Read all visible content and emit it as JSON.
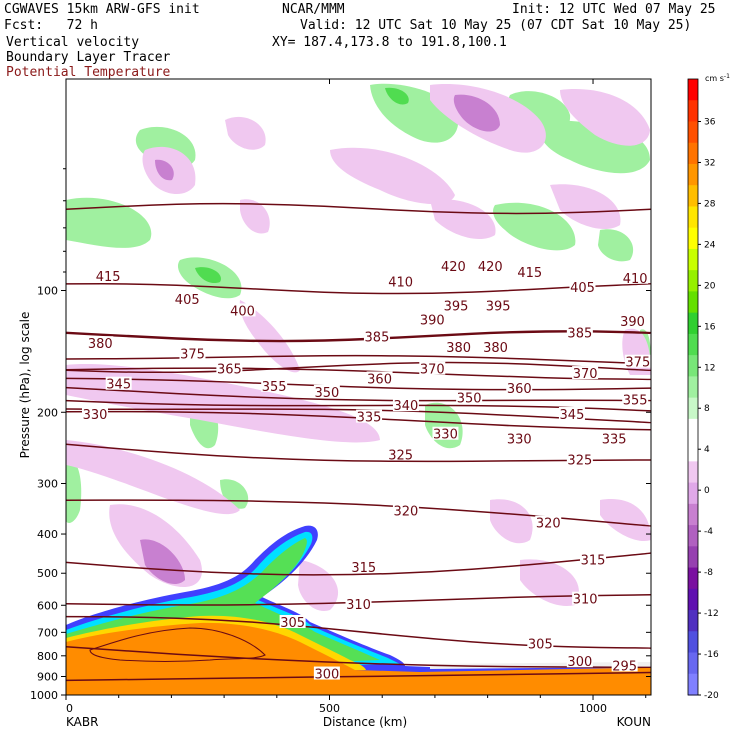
{
  "header": {
    "model": "CGWAVES 15km ARW-GFS init",
    "org": "NCAR/MMM",
    "init": "Init: 12 UTC Wed 07 May 25",
    "fcst": "Fcst:   72 h",
    "valid": "Valid: 12 UTC Sat 10 May 25 (07 CDT Sat 10 May 25)",
    "field1": "Vertical velocity",
    "field2": "Boundary Layer Tracer",
    "field3": "Potential Temperature",
    "xy": "XY= 187.4,173.8 to 191.8,100.1"
  },
  "colors": {
    "theta": "#6b0a14",
    "field3_text": "#8b1a1a",
    "tracer_orange": "#ff8c00",
    "tracer_yellow": "#ffd700",
    "tracer_green": "#55e055",
    "tracer_cyan": "#00e0ff",
    "tracer_blue": "#4040ff"
  },
  "chart_data": {
    "type": "cross-section",
    "ylabel": "Pressure (hPa), log scale",
    "xlabel": "Distance (km)",
    "x_ticks": [
      "0",
      "500",
      "1000"
    ],
    "xlim": [
      0,
      1110
    ],
    "y_ticks": [
      "100",
      "200",
      "300",
      "400",
      "500",
      "600",
      "700",
      "800",
      "900",
      "1000"
    ],
    "ylim": [
      1000,
      30
    ],
    "y_scale": "log",
    "endpoints": {
      "left": "KABR",
      "right": "KOUN"
    },
    "colorbar": {
      "unit": "cm s",
      "unit_exp": "-1",
      "labels": [
        "36",
        "32",
        "28",
        "24",
        "20",
        "16",
        "12",
        "8",
        "4",
        "0",
        "-4",
        "-8",
        "-12",
        "-16",
        "-20"
      ],
      "colors": [
        "#ff0000",
        "#ff3200",
        "#ff5000",
        "#ff7300",
        "#ff9600",
        "#ffbe00",
        "#ffe600",
        "#ffff00",
        "#c8ff00",
        "#96f000",
        "#64e000",
        "#30d030",
        "#50dc50",
        "#78e678",
        "#a0f0a0",
        "#c8f8c8",
        "#ffffff",
        "#ffffff",
        "#f0c8f0",
        "#e0a8e8",
        "#c880d0",
        "#b060c0",
        "#9640b0",
        "#7a10a0",
        "#6010b0",
        "#5030c0",
        "#5050e0",
        "#6868f0",
        "#8080ff"
      ]
    },
    "theta_labels": [
      {
        "text": "415",
        "x": 80,
        "p": 92
      },
      {
        "text": "405",
        "x": 230,
        "p": 105
      },
      {
        "text": "400",
        "x": 335,
        "p": 112
      },
      {
        "text": "410",
        "x": 635,
        "p": 95
      },
      {
        "text": "420",
        "x": 735,
        "p": 87
      },
      {
        "text": "420",
        "x": 805,
        "p": 87
      },
      {
        "text": "415",
        "x": 880,
        "p": 90
      },
      {
        "text": "405",
        "x": 980,
        "p": 98
      },
      {
        "text": "410",
        "x": 1080,
        "p": 93
      },
      {
        "text": "380",
        "x": 65,
        "p": 135
      },
      {
        "text": "375",
        "x": 240,
        "p": 143
      },
      {
        "text": "385",
        "x": 590,
        "p": 130
      },
      {
        "text": "390",
        "x": 695,
        "p": 118
      },
      {
        "text": "395",
        "x": 740,
        "p": 109
      },
      {
        "text": "395",
        "x": 820,
        "p": 109
      },
      {
        "text": "380",
        "x": 745,
        "p": 138
      },
      {
        "text": "380",
        "x": 815,
        "p": 138
      },
      {
        "text": "385",
        "x": 975,
        "p": 127
      },
      {
        "text": "390",
        "x": 1075,
        "p": 119
      },
      {
        "text": "375",
        "x": 1085,
        "p": 150
      },
      {
        "text": "365",
        "x": 310,
        "p": 156
      },
      {
        "text": "370",
        "x": 695,
        "p": 156
      },
      {
        "text": "370",
        "x": 985,
        "p": 160
      },
      {
        "text": "345",
        "x": 100,
        "p": 170
      },
      {
        "text": "355",
        "x": 395,
        "p": 172
      },
      {
        "text": "350",
        "x": 495,
        "p": 178
      },
      {
        "text": "360",
        "x": 595,
        "p": 165
      },
      {
        "text": "360",
        "x": 860,
        "p": 174
      },
      {
        "text": "355",
        "x": 1080,
        "p": 186
      },
      {
        "text": "330",
        "x": 55,
        "p": 202
      },
      {
        "text": "340",
        "x": 645,
        "p": 192
      },
      {
        "text": "350",
        "x": 765,
        "p": 184
      },
      {
        "text": "335",
        "x": 575,
        "p": 205
      },
      {
        "text": "345",
        "x": 960,
        "p": 202
      },
      {
        "text": "330",
        "x": 720,
        "p": 226
      },
      {
        "text": "330",
        "x": 860,
        "p": 232
      },
      {
        "text": "335",
        "x": 1040,
        "p": 232
      },
      {
        "text": "325",
        "x": 635,
        "p": 254
      },
      {
        "text": "325",
        "x": 975,
        "p": 262
      },
      {
        "text": "320",
        "x": 645,
        "p": 350
      },
      {
        "text": "320",
        "x": 915,
        "p": 375
      },
      {
        "text": "315",
        "x": 565,
        "p": 482
      },
      {
        "text": "315",
        "x": 1000,
        "p": 463
      },
      {
        "text": "310",
        "x": 555,
        "p": 595
      },
      {
        "text": "310",
        "x": 985,
        "p": 578
      },
      {
        "text": "305",
        "x": 430,
        "p": 660
      },
      {
        "text": "305",
        "x": 900,
        "p": 745
      },
      {
        "text": "300",
        "x": 495,
        "p": 885
      },
      {
        "text": "300",
        "x": 975,
        "p": 825
      },
      {
        "text": "295",
        "x": 1060,
        "p": 845
      }
    ]
  }
}
